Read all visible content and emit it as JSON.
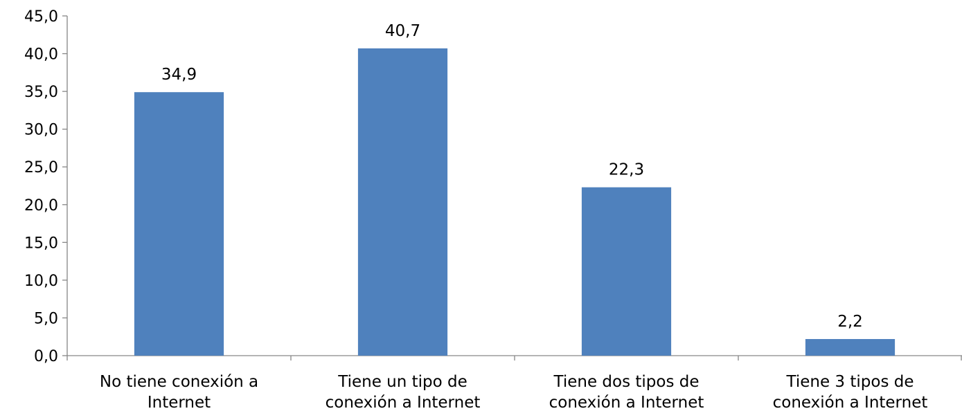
{
  "chart_data": {
    "type": "bar",
    "title": "",
    "xlabel": "",
    "ylabel": "",
    "categories": [
      [
        "No tiene conexión a",
        "Internet"
      ],
      [
        "Tiene un tipo de",
        "conexión a Internet"
      ],
      [
        "Tiene dos tipos de",
        "conexión a Internet"
      ],
      [
        "Tiene 3 tipos de",
        "conexión a Internet"
      ]
    ],
    "values": [
      34.9,
      40.7,
      22.3,
      2.2
    ],
    "value_labels": [
      "34,9",
      "40,7",
      "22,3",
      "2,2"
    ],
    "ylim": [
      0,
      45
    ],
    "y_ticks": [
      0,
      5,
      10,
      15,
      20,
      25,
      30,
      35,
      40,
      45
    ],
    "y_tick_labels": [
      "0,0",
      "5,0",
      "10,0",
      "15,0",
      "20,0",
      "25,0",
      "30,0",
      "35,0",
      "40,0",
      "45,0"
    ],
    "grid": false,
    "legend": "none",
    "bar_color": "#4f81bd",
    "axis_color": "#868686"
  }
}
